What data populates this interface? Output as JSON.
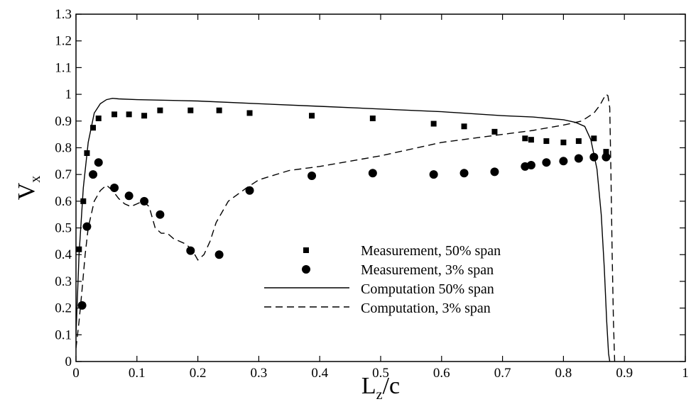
{
  "chart_data": {
    "type": "line",
    "xlabel": {
      "main": "L",
      "sub": "z",
      "suffix": "/c"
    },
    "ylabel": {
      "main": "V",
      "sub": "x"
    },
    "xlim": [
      0,
      1
    ],
    "ylim": [
      0,
      1.3
    ],
    "xticks": [
      0,
      0.1,
      0.2,
      0.3,
      0.4,
      0.5,
      0.6,
      0.7,
      0.8,
      0.9,
      1
    ],
    "xtick_labels": [
      "0",
      "0.1",
      "0.2",
      "0.3",
      "0.4",
      "0.5",
      "0.6",
      "0.7",
      "0.8",
      "0.9",
      "1"
    ],
    "yticks": [
      0,
      0.1,
      0.2,
      0.3,
      0.4,
      0.5,
      0.6,
      0.7,
      0.8,
      0.9,
      1,
      1.1,
      1.2,
      1.3
    ],
    "ytick_labels": [
      "0",
      "0.1",
      "0.2",
      "0.3",
      "0.4",
      "0.5",
      "0.6",
      "0.7",
      "0.8",
      "0.9",
      "1",
      "1.1",
      "1.2",
      "1.3"
    ],
    "grid": false,
    "legend_position": "lower-center",
    "series": [
      {
        "name": "Measurement, 50% span",
        "style": "square-marker",
        "color": "#000000",
        "x": [
          0.005,
          0.012,
          0.018,
          0.028,
          0.037,
          0.063,
          0.087,
          0.112,
          0.138,
          0.188,
          0.235,
          0.285,
          0.387,
          0.487,
          0.587,
          0.637,
          0.687,
          0.737,
          0.747,
          0.772,
          0.8,
          0.825,
          0.85,
          0.87
        ],
        "y": [
          0.42,
          0.6,
          0.78,
          0.875,
          0.91,
          0.925,
          0.925,
          0.92,
          0.94,
          0.94,
          0.94,
          0.93,
          0.92,
          0.91,
          0.89,
          0.88,
          0.86,
          0.835,
          0.83,
          0.825,
          0.82,
          0.825,
          0.835,
          0.785
        ]
      },
      {
        "name": "Measurement, 3% span",
        "style": "circle-marker",
        "color": "#000000",
        "x": [
          0.01,
          0.018,
          0.028,
          0.037,
          0.063,
          0.087,
          0.112,
          0.138,
          0.188,
          0.235,
          0.285,
          0.387,
          0.487,
          0.587,
          0.637,
          0.687,
          0.737,
          0.747,
          0.772,
          0.8,
          0.825,
          0.85,
          0.87
        ],
        "y": [
          0.21,
          0.505,
          0.7,
          0.745,
          0.65,
          0.62,
          0.6,
          0.55,
          0.415,
          0.4,
          0.64,
          0.695,
          0.705,
          0.7,
          0.705,
          0.71,
          0.73,
          0.735,
          0.745,
          0.75,
          0.76,
          0.765,
          0.765
        ]
      },
      {
        "name": "Computation 50% span",
        "style": "solid-line",
        "color": "#000000",
        "x": [
          0.0,
          0.005,
          0.012,
          0.02,
          0.03,
          0.04,
          0.05,
          0.06,
          0.07,
          0.1,
          0.2,
          0.3,
          0.4,
          0.5,
          0.6,
          0.7,
          0.75,
          0.8,
          0.82,
          0.835,
          0.845,
          0.855,
          0.862,
          0.867,
          0.871,
          0.874,
          0.876
        ],
        "y": [
          0.1,
          0.4,
          0.65,
          0.82,
          0.93,
          0.965,
          0.98,
          0.985,
          0.983,
          0.98,
          0.975,
          0.965,
          0.955,
          0.945,
          0.935,
          0.92,
          0.915,
          0.905,
          0.895,
          0.88,
          0.83,
          0.72,
          0.55,
          0.35,
          0.15,
          0.03,
          0.0
        ]
      },
      {
        "name": "Computation, 3% span",
        "style": "dashed-line",
        "color": "#000000",
        "x": [
          0.0,
          0.005,
          0.01,
          0.015,
          0.02,
          0.03,
          0.04,
          0.05,
          0.06,
          0.07,
          0.08,
          0.09,
          0.1,
          0.11,
          0.12,
          0.13,
          0.14,
          0.15,
          0.16,
          0.17,
          0.18,
          0.19,
          0.2,
          0.21,
          0.22,
          0.23,
          0.25,
          0.28,
          0.3,
          0.35,
          0.4,
          0.5,
          0.6,
          0.7,
          0.75,
          0.8,
          0.83,
          0.85,
          0.86,
          0.866,
          0.87,
          0.873,
          0.876,
          0.878,
          0.88,
          0.882,
          0.884
        ],
        "y": [
          0.05,
          0.15,
          0.27,
          0.4,
          0.5,
          0.6,
          0.64,
          0.66,
          0.64,
          0.61,
          0.59,
          0.58,
          0.59,
          0.6,
          0.58,
          0.5,
          0.48,
          0.48,
          0.46,
          0.45,
          0.44,
          0.42,
          0.38,
          0.4,
          0.45,
          0.52,
          0.6,
          0.65,
          0.68,
          0.715,
          0.73,
          0.77,
          0.82,
          0.85,
          0.865,
          0.885,
          0.9,
          0.93,
          0.96,
          0.985,
          1.0,
          0.995,
          0.95,
          0.7,
          0.4,
          0.15,
          0.0
        ]
      }
    ]
  }
}
